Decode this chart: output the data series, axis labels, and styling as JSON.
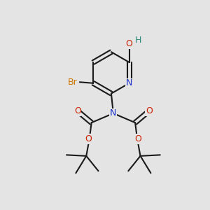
{
  "bg_color": "#e4e4e4",
  "bond_color": "#1a1a1a",
  "bond_width": 1.5,
  "atom_colors": {
    "N_ring": "#1a2ecc",
    "N_center": "#1a2ecc",
    "O": "#cc2000",
    "Br": "#cc7700",
    "H": "#2a8a78"
  },
  "font_size_atom": 9.0
}
